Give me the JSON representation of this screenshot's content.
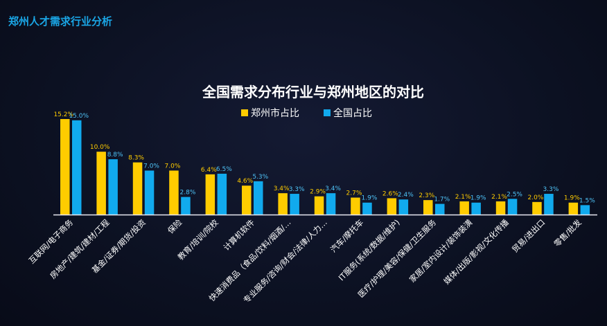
{
  "page_title": "郑州人才需求行业分析",
  "chart_data": {
    "type": "bar",
    "title": "全国需求分布行业与郑州地区的对比",
    "legend_position": "top-center",
    "grid": false,
    "ylim": [
      0,
      16
    ],
    "categories": [
      "互联网/电子商务",
      "房地产/建筑/建材/工程",
      "基金/证券/期货/投资",
      "保险",
      "教育/培训/院校",
      "计算机软件",
      "快速消费品（食品/饮料/烟酒/…",
      "专业服务/咨询/财会/法律/人力…",
      "汽车/摩托车",
      "IT服务(系统/数据/维护)",
      "医疗/护理/美容/保健/卫生服务",
      "家居/室内设计/装饰装潢",
      "媒体/出版/影视/文化传播",
      "贸易/进出口",
      "零售/批发"
    ],
    "series": [
      {
        "name": "郑州市占比",
        "color": "#ffcc00",
        "values": [
          15.2,
          10.0,
          8.3,
          7.0,
          6.4,
          4.6,
          3.4,
          2.9,
          2.7,
          2.6,
          2.3,
          2.1,
          2.1,
          2.0,
          1.9
        ],
        "labels": [
          "15.2%",
          "10.0%",
          "8.3%",
          "7.0%",
          "6.4%",
          "4.6%",
          "3.4%",
          "2.9%",
          "2.7%",
          "2.6%",
          "2.3%",
          "2.1%",
          "2.1%",
          "2.0%",
          "1.9%"
        ]
      },
      {
        "name": "全国占比",
        "color": "#11aaee",
        "values": [
          15.0,
          8.8,
          7.0,
          2.8,
          6.5,
          5.3,
          3.3,
          3.4,
          1.9,
          2.4,
          1.7,
          1.9,
          2.5,
          3.3,
          1.5
        ],
        "labels": [
          "15.0%",
          "8.8%",
          "7.0%",
          "2.8%",
          "6.5%",
          "5.3%",
          "3.3%",
          "3.4%",
          "1.9%",
          "2.4%",
          "1.7%",
          "1.9%",
          "2.5%",
          "3.3%",
          "1.5%"
        ]
      }
    ]
  }
}
